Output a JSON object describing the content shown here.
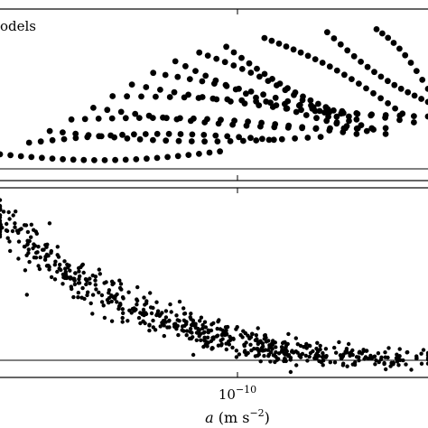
{
  "chart_data": [
    {
      "type": "scatter",
      "panel": "top",
      "xscale": "log",
      "xlim": [
        2.9e-11,
        4.6e-10
      ],
      "ylim": [
        -0.15,
        1.0
      ],
      "reference_line_y": 0,
      "legend_text": "odels",
      "legend_placement": "top-left",
      "grid": false,
      "series": [
        {
          "tracks": [
            {
              "x_start": 2.9e-11,
              "x_end": 1.2e-10,
              "y_start": 0.1,
              "y_end": 0.12,
              "n": 22
            },
            {
              "x_start": 3.5e-11,
              "x_end": 1.7e-10,
              "y_start": 0.18,
              "y_end": 0.2,
              "n": 22
            },
            {
              "x_start": 4e-11,
              "x_end": 2.3e-10,
              "y_start": 0.26,
              "y_end": 0.22,
              "n": 22
            },
            {
              "x_start": 4.6e-11,
              "x_end": 2.9e-10,
              "y_start": 0.34,
              "y_end": 0.24,
              "n": 22
            },
            {
              "x_start": 5.3e-11,
              "x_end": 3.5e-10,
              "y_start": 0.42,
              "y_end": 0.28,
              "n": 22
            },
            {
              "x_start": 6e-11,
              "x_end": 4.2e-10,
              "y_start": 0.5,
              "y_end": 0.32,
              "n": 22
            },
            {
              "x_start": 6.8e-11,
              "x_end": 4.6e-10,
              "y_start": 0.58,
              "y_end": 0.36,
              "n": 22
            },
            {
              "x_start": 7.8e-11,
              "x_end": 3.5e-10,
              "y_start": 0.66,
              "y_end": 0.24,
              "n": 20
            },
            {
              "x_start": 9e-11,
              "x_end": 3.1e-10,
              "y_start": 0.74,
              "y_end": 0.26,
              "n": 20
            },
            {
              "x_start": 1.05e-10,
              "x_end": 2.7e-10,
              "y_start": 0.8,
              "y_end": 0.28,
              "n": 18
            },
            {
              "x_start": 1.25e-10,
              "x_end": 2.9e-10,
              "y_start": 0.84,
              "y_end": 0.34,
              "n": 18
            },
            {
              "x_start": 1.6e-10,
              "x_end": 3.9e-10,
              "y_start": 0.9,
              "y_end": 0.38,
              "n": 20
            },
            {
              "x_start": 2.4e-10,
              "x_end": 4.6e-10,
              "y_start": 0.94,
              "y_end": 0.46,
              "n": 16
            },
            {
              "x_start": 3.3e-10,
              "x_end": 4.6e-10,
              "y_start": 0.96,
              "y_end": 0.55,
              "n": 10
            }
          ]
        }
      ]
    },
    {
      "type": "scatter",
      "panel": "bottom",
      "xscale": "log",
      "xlim": [
        2.9e-11,
        4.6e-10
      ],
      "ylim": [
        -0.12,
        1.0
      ],
      "reference_line_y": 0,
      "grid": false,
      "xlabel": "a (m s^-2)",
      "xlabel_parts": {
        "symbol": "a",
        "open": " (m s",
        "exp": "−2",
        "close": ")"
      },
      "xtick": {
        "base": "10",
        "exp": "−10",
        "value": 1e-10
      },
      "series": [
        {
          "trend": {
            "y_at_xmin": 0.9,
            "y_at_xmax": 0.01,
            "power": 1.15
          },
          "scatter_spread": 0.07,
          "n_points": 620
        }
      ]
    }
  ]
}
